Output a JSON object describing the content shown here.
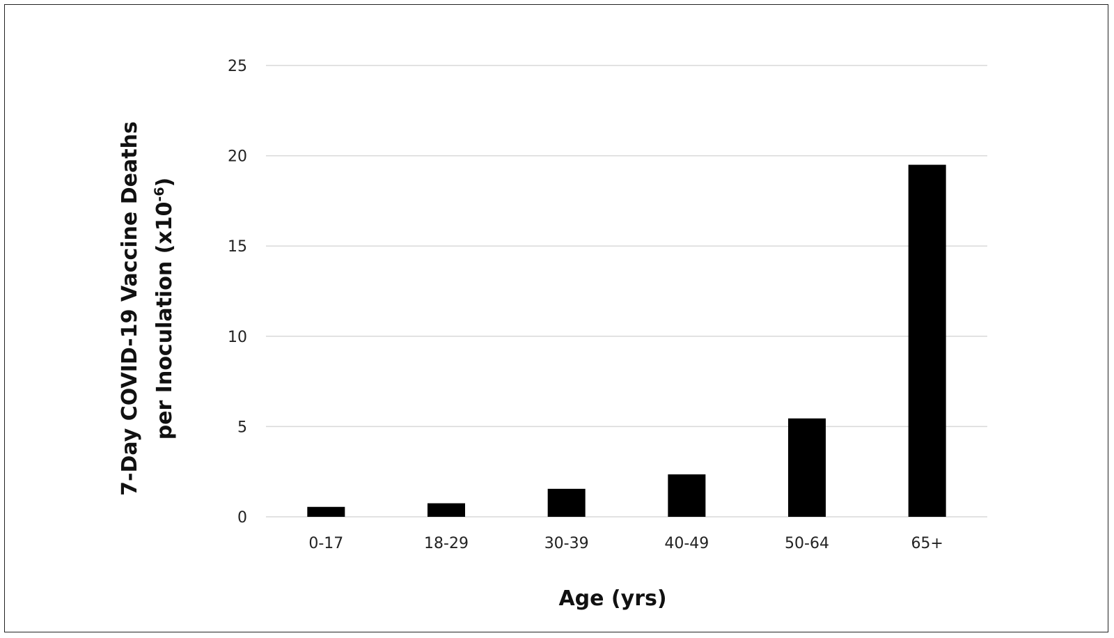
{
  "chart_data": {
    "type": "bar",
    "categories": [
      "0-17",
      "18-29",
      "30-39",
      "40-49",
      "50-64",
      "65+"
    ],
    "values": [
      0.55,
      0.75,
      1.55,
      2.35,
      5.45,
      19.5
    ],
    "title": "",
    "xlabel": "Age (yrs)",
    "ylabel_line1": "7-Day COVID-19 Vaccine Deaths",
    "ylabel_line2_text": "per Inoculation  (x10",
    "ylabel_exponent": "-6",
    "ylabel_close": ")",
    "ylim": [
      0,
      25
    ],
    "yticks": [
      "0",
      "5",
      "10",
      "15",
      "20",
      "25"
    ],
    "ytick_values": [
      0,
      5,
      10,
      15,
      20,
      25
    ],
    "grid": true,
    "legend": "none",
    "bar_color": "#000000",
    "grid_color": "#d9d9d9"
  }
}
